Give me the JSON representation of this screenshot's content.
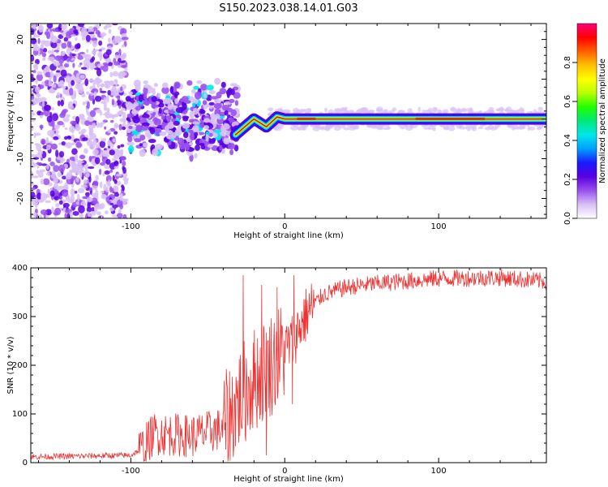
{
  "title": "S150.2023.038.14.01.G03",
  "chart_data": [
    {
      "type": "heatmap",
      "xlabel": "Height of straight line (km)",
      "ylabel": "Frequency (Hz)",
      "xlim": [
        -165,
        170
      ],
      "ylim": [
        -25,
        24
      ],
      "x_ticks": [
        -100,
        0,
        100
      ],
      "y_ticks": [
        -20,
        -10,
        0,
        10,
        20
      ],
      "colorbar": {
        "label": "Normalized spectral amplitude",
        "range": [
          0,
          1
        ],
        "ticks": [
          0.0,
          0.2,
          0.4,
          0.6,
          0.8
        ],
        "colors": [
          "#ffffff",
          "#d8c0f5",
          "#9a50ee",
          "#5a00e0",
          "#1a1aff",
          "#00a0ff",
          "#00e8e8",
          "#00e87a",
          "#20ff00",
          "#b8ff00",
          "#ffff00",
          "#ffc000",
          "#ff6000",
          "#ff0000",
          "#ff007a"
        ]
      },
      "ridge": [
        {
          "x": -32,
          "freq": -4
        },
        {
          "x": -20,
          "freq": 0
        },
        {
          "x": -12,
          "freq": -2
        },
        {
          "x": -5,
          "freq": 0.5
        },
        {
          "x": 0,
          "freq": 0
        },
        {
          "x": 170,
          "freq": 0
        }
      ]
    },
    {
      "type": "line",
      "xlabel": "Height of straight line (km)",
      "ylabel": "SNR (10 * v/v)",
      "xlim": [
        -165,
        170
      ],
      "ylim": [
        0,
        400
      ],
      "x_ticks": [
        -100,
        0,
        100
      ],
      "y_ticks": [
        0,
        100,
        200,
        300,
        400
      ],
      "line_color": "#ee3333",
      "envelope": [
        {
          "x": -165,
          "y": 12
        },
        {
          "x": -100,
          "y": 15
        },
        {
          "x": -92,
          "y": 30
        },
        {
          "x": -85,
          "y": 60
        },
        {
          "x": -60,
          "y": 55
        },
        {
          "x": -40,
          "y": 70
        },
        {
          "x": -30,
          "y": 130
        },
        {
          "x": -20,
          "y": 170
        },
        {
          "x": -5,
          "y": 215
        },
        {
          "x": 5,
          "y": 250
        },
        {
          "x": 15,
          "y": 310
        },
        {
          "x": 25,
          "y": 345
        },
        {
          "x": 40,
          "y": 360
        },
        {
          "x": 60,
          "y": 368
        },
        {
          "x": 100,
          "y": 378
        },
        {
          "x": 140,
          "y": 380
        },
        {
          "x": 170,
          "y": 372
        }
      ],
      "spikes": [
        {
          "x": -27,
          "y": 385
        },
        {
          "x": -15,
          "y": 365
        },
        {
          "x": -5,
          "y": 360
        },
        {
          "x": 6,
          "y": 385
        },
        {
          "x": -12,
          "y": 15
        },
        {
          "x": 5,
          "y": 120
        }
      ]
    }
  ]
}
